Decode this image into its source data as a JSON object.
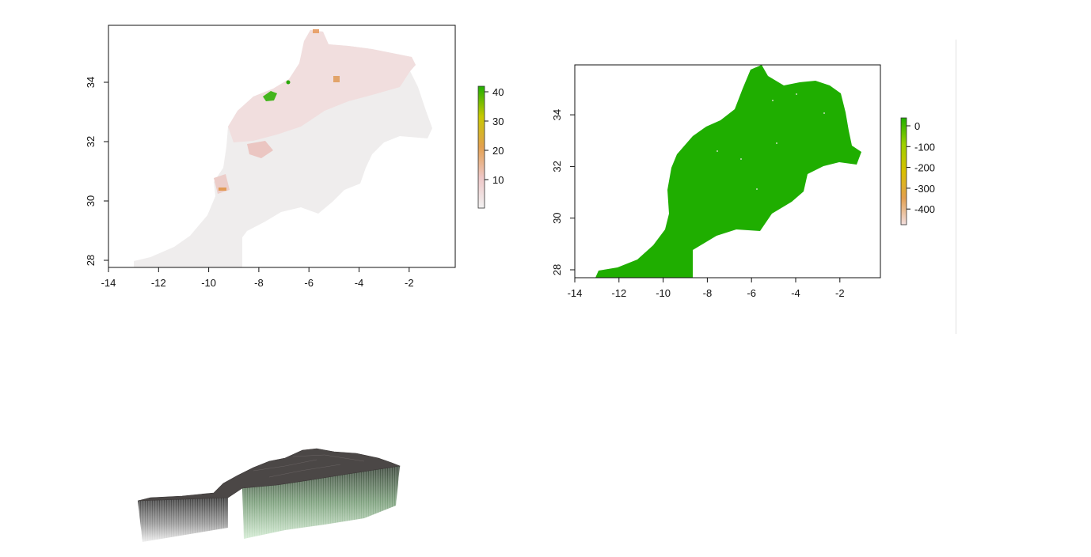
{
  "plots": [
    {
      "x_ticks": [
        "-14",
        "-12",
        "-10",
        "-8",
        "-6",
        "-4",
        "-2"
      ],
      "y_ticks": [
        "28",
        "30",
        "32",
        "34"
      ],
      "legend_ticks": [
        "10",
        "20",
        "30",
        "40"
      ],
      "legend_colors": [
        "#f2f2f2",
        "#eec7c7",
        "#e3a050",
        "#c8c800",
        "#1faf00"
      ]
    },
    {
      "x_ticks": [
        "-14",
        "-12",
        "-10",
        "-8",
        "-6",
        "-4",
        "-2"
      ],
      "y_ticks": [
        "28",
        "30",
        "32",
        "34"
      ],
      "legend_ticks": [
        "0",
        "-100",
        "-200",
        "-300",
        "-400"
      ],
      "legend_colors": [
        "#1faf00",
        "#9ed000",
        "#d9c000",
        "#e3a050",
        "#f2dede"
      ]
    }
  ],
  "colors": {
    "map_land": "#efeded",
    "map_green": "#1faf00",
    "relief_top": "#4b4746"
  }
}
